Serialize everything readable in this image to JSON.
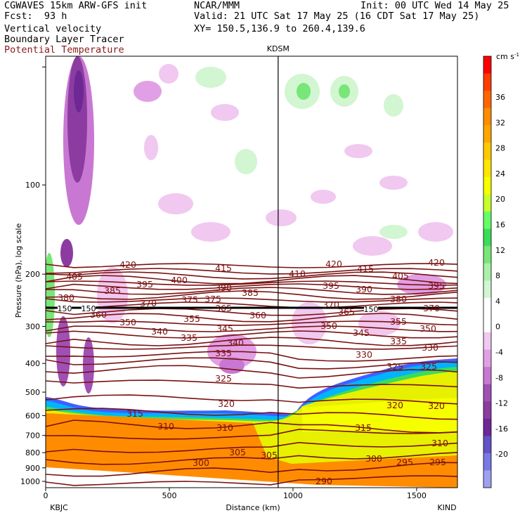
{
  "header": {
    "model": "CGWAVES 15km ARW-GFS init",
    "org": "NCAR/MMM",
    "init": "Init: 00 UTC Wed 14 May 25",
    "fcst": "Fcst:  93 h",
    "valid": "Valid: 21 UTC Sat 17 May 25 (16 CDT Sat 17 May 25)",
    "field1": "Vertical velocity",
    "xy": "XY= 150.5,136.9 to 260.4,139.6",
    "field2": "Boundary Layer Tracer",
    "field3": "Potential Temperature"
  },
  "chart_data": {
    "type": "heatmap",
    "xlabel": "Distance (km)",
    "ylabel": "Pressure (hPa), log scale",
    "x_ticks": [
      "0",
      "500",
      "1000",
      "1500"
    ],
    "y_ticks": [
      "100",
      "200",
      "300",
      "400",
      "500",
      "600",
      "700",
      "800",
      "900",
      "1000"
    ],
    "left_station": "KBJC",
    "right_station": "KIND",
    "mid_station": "KDSM",
    "mid_station_km": 940,
    "colorbar_unit": "cm s",
    "colorbar_unit_exp": "-1",
    "colorbar_ticks": [
      "36",
      "32",
      "28",
      "24",
      "20",
      "16",
      "12",
      "8",
      "4",
      "0",
      "-4",
      "-8",
      "-12",
      "-16",
      "-20"
    ],
    "colorbar_colors": [
      "#ff0000",
      "#ff3c00",
      "#ff6600",
      "#ff8c00",
      "#ffa500",
      "#ffc800",
      "#ffe600",
      "#f5ff00",
      "#c8ff28",
      "#64ff64",
      "#3cdc5a",
      "#78e678",
      "#aaf0aa",
      "#d2f5d2",
      "#ffffff",
      "#ffffff",
      "#f0c8f0",
      "#e1a0e6",
      "#c878d2",
      "#a050b4",
      "#8c3ca0",
      "#6e2896",
      "#6450c8",
      "#7878e6",
      "#a0a0f0"
    ],
    "theta_contour_labels": [
      "420",
      "415",
      "410",
      "420",
      "415",
      "420",
      "405",
      "395",
      "400",
      "390",
      "385",
      "395",
      "390",
      "405",
      "395",
      "380",
      "385",
      "375",
      "370",
      "375",
      "370",
      "380",
      "370",
      "360",
      "365",
      "360",
      "365",
      "350",
      "355",
      "345",
      "350",
      "355",
      "350",
      "340",
      "335",
      "345",
      "340",
      "335",
      "330",
      "335",
      "330",
      "325",
      "325",
      "325",
      "320",
      "320",
      "320",
      "315",
      "315",
      "310",
      "310",
      "310",
      "305",
      "305",
      "300",
      "300",
      "295",
      "295",
      "290"
    ],
    "tracer_labels": [
      "150",
      "150",
      "150"
    ]
  }
}
